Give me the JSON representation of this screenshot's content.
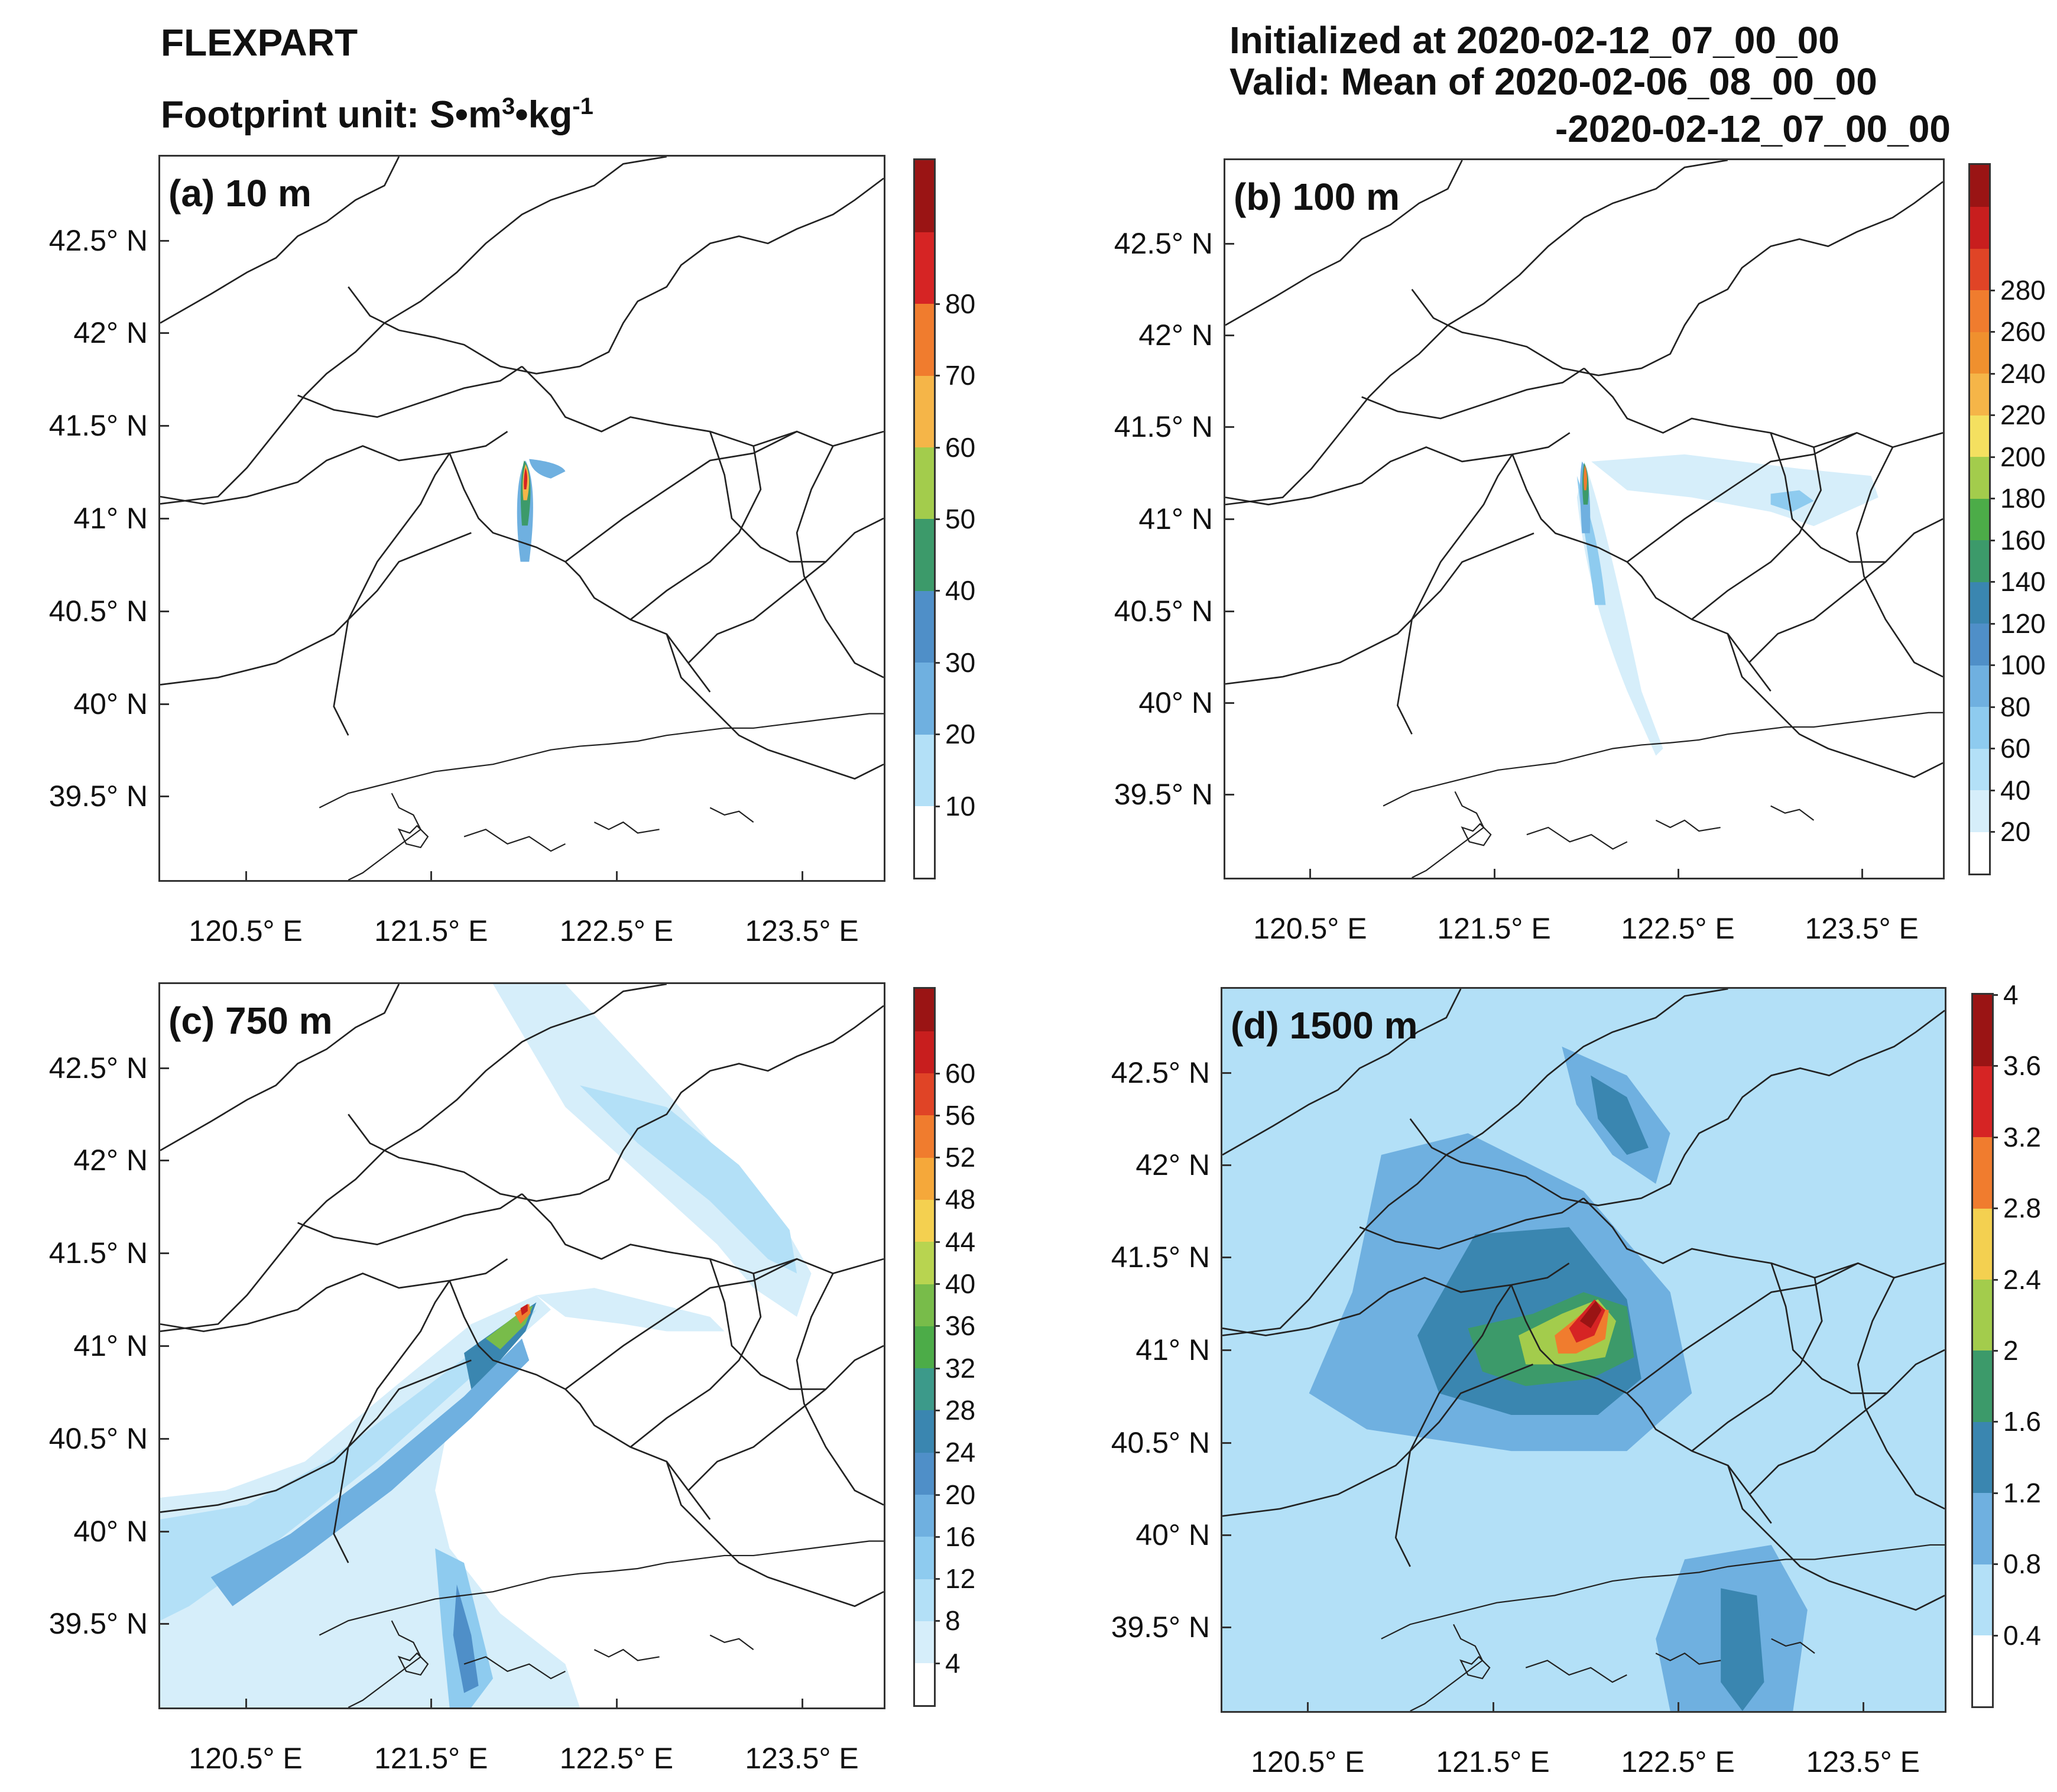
{
  "header": {
    "model": "FLEXPART",
    "unit_label": "Footprint unit: S•m",
    "unit_sup1": "3",
    "unit_mid": "•kg",
    "unit_sup2": "-1",
    "init_line": "Initialized at 2020-02-12_07_00_00",
    "valid_line": "Valid: Mean of 2020-02-06_08_00_00",
    "valid_line2": "-2020-02-12_07_00_00"
  },
  "axes": {
    "lat_labels": [
      "42.5° N",
      "42° N",
      "41.5° N",
      "41° N",
      "40.5° N",
      "40° N",
      "39.5° N"
    ],
    "lon_labels": [
      "120.5° E",
      "121.5° E",
      "122.5° E",
      "123.5° E"
    ]
  },
  "colors": {
    "scale": [
      "#ffffff",
      "#d6eefa",
      "#b3e0f7",
      "#8ecbef",
      "#6fb0e0",
      "#4f8fc8",
      "#3a7fa8",
      "#3c9a6a",
      "#5fb04a",
      "#a3cc4c",
      "#f4e060",
      "#f5b548",
      "#f07c2e",
      "#e04426",
      "#c81e1e",
      "#9a1414"
    ]
  },
  "panels": [
    {
      "id": "a",
      "title": "(a) 10 m",
      "colorbar": {
        "ticks": [
          "80",
          "70",
          "60",
          "50",
          "40",
          "30",
          "20",
          "10"
        ],
        "colors": [
          "#ffffff",
          "#b3e0f7",
          "#6fb0e0",
          "#4f8fc8",
          "#3c9a6a",
          "#a3cc4c",
          "#f5b548",
          "#f07c2e",
          "#d62424",
          "#9a1414"
        ]
      }
    },
    {
      "id": "b",
      "title": "(b) 100 m",
      "colorbar": {
        "ticks": [
          "280",
          "260",
          "240",
          "220",
          "200",
          "180",
          "160",
          "140",
          "120",
          "100",
          "80",
          "60",
          "40",
          "20"
        ],
        "colors": [
          "#ffffff",
          "#d6eefa",
          "#b3e0f7",
          "#8ecbef",
          "#6fb0e0",
          "#4f8fc8",
          "#3a86b0",
          "#3c9a6a",
          "#4cac48",
          "#a3cc4c",
          "#f4e060",
          "#f5b548",
          "#f0902e",
          "#f07c2e",
          "#e04426",
          "#c81e1e",
          "#9a1414"
        ]
      }
    },
    {
      "id": "c",
      "title": "(c) 750 m",
      "colorbar": {
        "ticks": [
          "60",
          "56",
          "52",
          "48",
          "44",
          "40",
          "36",
          "32",
          "28",
          "24",
          "20",
          "16",
          "12",
          "8",
          "4"
        ],
        "colors": [
          "#ffffff",
          "#d6eefa",
          "#b3e0f7",
          "#8ecbef",
          "#6fb0e0",
          "#4f8fc8",
          "#3a86b0",
          "#3c9a8a",
          "#4cac48",
          "#78bc4a",
          "#b8d450",
          "#f4d050",
          "#f5a83a",
          "#f07c2e",
          "#e04426",
          "#c81e1e",
          "#9a1414"
        ]
      }
    },
    {
      "id": "d",
      "title": "(d) 1500 m",
      "colorbar": {
        "ticks": [
          "4",
          "3.6",
          "3.2",
          "2.8",
          "2.4",
          "2",
          "1.6",
          "1.2",
          "0.8",
          "0.4"
        ],
        "colors": [
          "#ffffff",
          "#b3e0f7",
          "#6fb0e0",
          "#3a86b0",
          "#3c9a6a",
          "#a3cc4c",
          "#f4d050",
          "#f07c2e",
          "#d62424",
          "#9a1414"
        ]
      }
    }
  ]
}
